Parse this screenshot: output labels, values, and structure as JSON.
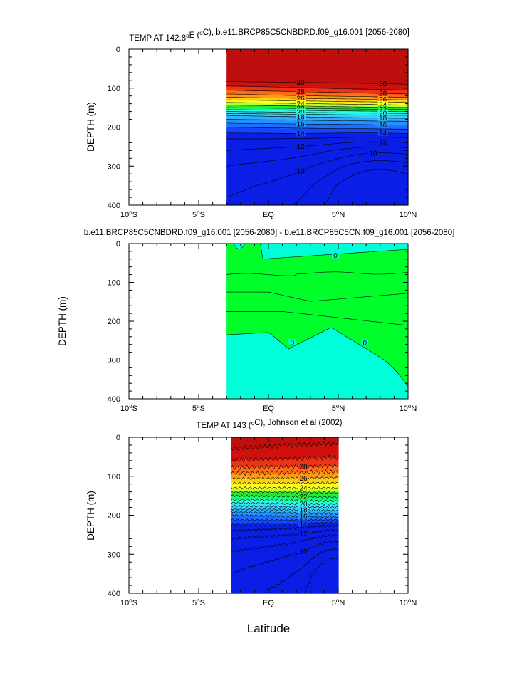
{
  "figure": {
    "xlabel": "Latitude",
    "ylabel": "DEPTH (m)",
    "x_ticks": [
      "10°S",
      "5°S",
      "EQ",
      "5°N",
      "10°N"
    ],
    "y_ticks": [
      "0",
      "100",
      "200",
      "300",
      "400"
    ]
  },
  "chart_data": [
    {
      "type": "heatmap",
      "title": "TEMP AT 142.8°E (°C), b.e11.BRCP85C5CNBDRD.f09_g16.001 [2056-2080]",
      "xlabel": "Latitude",
      "ylabel": "DEPTH (m)",
      "xlim": [
        -10,
        10
      ],
      "ylim": [
        400,
        0
      ],
      "data_xrange": [
        -3,
        10
      ],
      "contour_interval": 1,
      "contour_levels_labeled": [
        30,
        28,
        26,
        24,
        22,
        20,
        18,
        16,
        14,
        12,
        10
      ],
      "profile": {
        "depth": [
          0,
          40,
          80,
          100,
          120,
          150,
          170,
          185,
          200,
          230,
          260,
          300,
          350,
          400
        ],
        "temp_south": [
          31,
          30.8,
          30.3,
          28.5,
          26.5,
          22,
          18,
          16.5,
          15,
          13,
          12,
          11,
          10.3,
          9.8
        ],
        "temp_north": [
          31,
          30.9,
          30.5,
          29.5,
          27.5,
          23,
          19,
          17,
          15.5,
          13,
          11,
          9.5,
          8.5,
          8
        ]
      }
    },
    {
      "type": "heatmap",
      "title": "b.e11.BRCP85C5CNBDRD.f09_g16.001 [2056-2080] - b.e11.BRCP85C5CN.f09_g16.001 [2056-2080]",
      "xlabel": "Latitude",
      "ylabel": "DEPTH (m)",
      "xlim": [
        -10,
        10
      ],
      "ylim": [
        400,
        0
      ],
      "data_xrange": [
        -3,
        10
      ],
      "contour_levels_labeled": [
        0,
        0
      ],
      "regions": [
        {
          "name": "difference above 0",
          "color": "#00ff2a"
        },
        {
          "name": "difference near 0",
          "color": "#00ffd8"
        }
      ]
    },
    {
      "type": "heatmap",
      "title": "TEMP AT 143 (°C), Johnson et al (2002)",
      "xlabel": "Latitude",
      "ylabel": "DEPTH (m)",
      "xlim": [
        -10,
        10
      ],
      "ylim": [
        400,
        0
      ],
      "data_xrange": [
        -2.7,
        5
      ],
      "contour_interval": 1,
      "contour_levels_labeled": [
        28,
        26,
        24,
        22,
        20,
        18,
        16,
        14,
        12,
        10
      ],
      "profile": {
        "depth": [
          0,
          40,
          70,
          100,
          130,
          160,
          180,
          200,
          230,
          260,
          300,
          350,
          400
        ],
        "temp_south": [
          30.5,
          29.8,
          28.5,
          26.5,
          24,
          21,
          18.5,
          16,
          13.5,
          12,
          10.8,
          10,
          9.5
        ],
        "temp_north": [
          30.3,
          29.5,
          28.2,
          26.3,
          24,
          21.5,
          19,
          16.5,
          13,
          11,
          9.5,
          8.4,
          7.8
        ]
      }
    }
  ],
  "colors": {
    "scale": [
      "#0a1ee6",
      "#1446ff",
      "#1c6fff",
      "#2392ff",
      "#2eaef8",
      "#35cdfd",
      "#35e9f2",
      "#27ffe6",
      "#10ff6c",
      "#2fe72f",
      "#b8ff33",
      "#fbff1e",
      "#ffcc17",
      "#ff9a12",
      "#fd6d15",
      "#ee3317",
      "#cf110e",
      "#be0f0e"
    ],
    "diff_positive": "#00ff2a",
    "diff_zero": "#00ffd8"
  }
}
